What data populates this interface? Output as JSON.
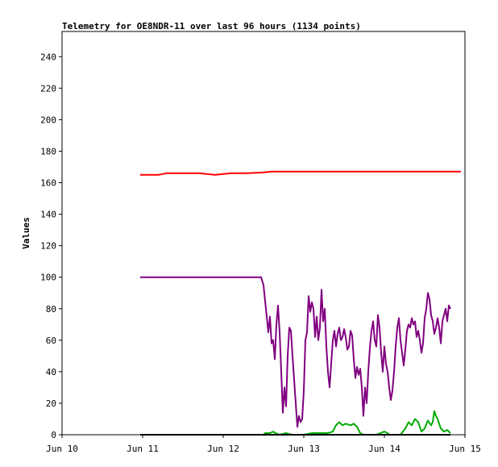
{
  "chart_data": {
    "type": "line",
    "title": "Telemetry for OE8NDR-11 over last 96 hours (1134 points)",
    "xlabel": "",
    "ylabel": "Values",
    "x_ticks": [
      "Jun 10",
      "Jun 11",
      "Jun 12",
      "Jun 13",
      "Jun 14",
      "Jun 15"
    ],
    "xlim": [
      0,
      5
    ],
    "x_unit": "days after Jun 10 00:00",
    "y_ticks": [
      0,
      20,
      40,
      60,
      80,
      100,
      120,
      140,
      160,
      180,
      200,
      220,
      240
    ],
    "ylim": [
      0,
      256
    ],
    "grid": false,
    "legend": "none",
    "series": [
      {
        "color": "#ff0000",
        "points": [
          [
            0.97,
            165
          ],
          [
            1.2,
            165
          ],
          [
            1.3,
            166
          ],
          [
            1.5,
            166
          ],
          [
            1.7,
            166
          ],
          [
            1.9,
            165
          ],
          [
            2.1,
            166
          ],
          [
            2.3,
            166
          ],
          [
            2.5,
            166.5
          ],
          [
            2.6,
            167
          ],
          [
            2.8,
            167
          ],
          [
            3.0,
            167
          ],
          [
            3.2,
            167
          ],
          [
            3.5,
            167
          ],
          [
            3.8,
            167
          ],
          [
            4.1,
            167
          ],
          [
            4.4,
            167
          ],
          [
            4.7,
            167
          ],
          [
            4.95,
            167
          ]
        ]
      },
      {
        "color": "#800080",
        "points": [
          [
            0.97,
            100
          ],
          [
            1.5,
            100
          ],
          [
            2.0,
            100
          ],
          [
            2.47,
            100
          ],
          [
            2.5,
            95
          ],
          [
            2.53,
            80
          ],
          [
            2.56,
            65
          ],
          [
            2.58,
            75
          ],
          [
            2.6,
            58
          ],
          [
            2.62,
            60
          ],
          [
            2.64,
            48
          ],
          [
            2.66,
            70
          ],
          [
            2.68,
            82
          ],
          [
            2.7,
            65
          ],
          [
            2.72,
            40
          ],
          [
            2.74,
            14
          ],
          [
            2.76,
            30
          ],
          [
            2.78,
            18
          ],
          [
            2.8,
            50
          ],
          [
            2.82,
            68
          ],
          [
            2.84,
            66
          ],
          [
            2.86,
            50
          ],
          [
            2.88,
            35
          ],
          [
            2.9,
            20
          ],
          [
            2.92,
            5
          ],
          [
            2.94,
            12
          ],
          [
            2.96,
            8
          ],
          [
            2.98,
            10
          ],
          [
            3.0,
            28
          ],
          [
            3.02,
            60
          ],
          [
            3.04,
            65
          ],
          [
            3.06,
            88
          ],
          [
            3.08,
            78
          ],
          [
            3.1,
            84
          ],
          [
            3.12,
            80
          ],
          [
            3.14,
            62
          ],
          [
            3.16,
            75
          ],
          [
            3.18,
            60
          ],
          [
            3.2,
            68
          ],
          [
            3.22,
            92
          ],
          [
            3.24,
            72
          ],
          [
            3.26,
            80
          ],
          [
            3.28,
            56
          ],
          [
            3.3,
            40
          ],
          [
            3.32,
            30
          ],
          [
            3.34,
            45
          ],
          [
            3.36,
            60
          ],
          [
            3.38,
            66
          ],
          [
            3.4,
            56
          ],
          [
            3.42,
            64
          ],
          [
            3.44,
            68
          ],
          [
            3.46,
            60
          ],
          [
            3.48,
            62
          ],
          [
            3.5,
            67
          ],
          [
            3.52,
            62
          ],
          [
            3.54,
            54
          ],
          [
            3.56,
            56
          ],
          [
            3.58,
            66
          ],
          [
            3.6,
            63
          ],
          [
            3.62,
            48
          ],
          [
            3.64,
            36
          ],
          [
            3.66,
            43
          ],
          [
            3.68,
            38
          ],
          [
            3.7,
            42
          ],
          [
            3.72,
            30
          ],
          [
            3.74,
            12
          ],
          [
            3.76,
            30
          ],
          [
            3.78,
            20
          ],
          [
            3.8,
            40
          ],
          [
            3.82,
            55
          ],
          [
            3.84,
            66
          ],
          [
            3.86,
            72
          ],
          [
            3.88,
            60
          ],
          [
            3.9,
            56
          ],
          [
            3.92,
            76
          ],
          [
            3.94,
            68
          ],
          [
            3.96,
            52
          ],
          [
            3.98,
            40
          ],
          [
            4.0,
            56
          ],
          [
            4.02,
            45
          ],
          [
            4.04,
            40
          ],
          [
            4.06,
            30
          ],
          [
            4.08,
            22
          ],
          [
            4.1,
            28
          ],
          [
            4.12,
            40
          ],
          [
            4.14,
            56
          ],
          [
            4.16,
            68
          ],
          [
            4.18,
            74
          ],
          [
            4.2,
            60
          ],
          [
            4.22,
            52
          ],
          [
            4.24,
            44
          ],
          [
            4.26,
            54
          ],
          [
            4.28,
            66
          ],
          [
            4.3,
            70
          ],
          [
            4.32,
            68
          ],
          [
            4.34,
            74
          ],
          [
            4.36,
            70
          ],
          [
            4.38,
            72
          ],
          [
            4.4,
            62
          ],
          [
            4.42,
            66
          ],
          [
            4.44,
            60
          ],
          [
            4.46,
            52
          ],
          [
            4.48,
            58
          ],
          [
            4.5,
            74
          ],
          [
            4.52,
            80
          ],
          [
            4.54,
            90
          ],
          [
            4.56,
            86
          ],
          [
            4.58,
            76
          ],
          [
            4.6,
            72
          ],
          [
            4.62,
            64
          ],
          [
            4.64,
            68
          ],
          [
            4.66,
            74
          ],
          [
            4.68,
            68
          ],
          [
            4.7,
            58
          ],
          [
            4.72,
            72
          ],
          [
            4.74,
            76
          ],
          [
            4.76,
            80
          ],
          [
            4.78,
            72
          ],
          [
            4.8,
            82
          ],
          [
            4.82,
            80
          ]
        ]
      },
      {
        "color": "#00aa00",
        "points": [
          [
            2.5,
            0
          ],
          [
            2.52,
            1
          ],
          [
            2.58,
            1
          ],
          [
            2.62,
            2
          ],
          [
            2.65,
            1
          ],
          [
            2.7,
            0
          ],
          [
            2.78,
            1
          ],
          [
            2.85,
            0
          ],
          [
            3.0,
            0
          ],
          [
            3.1,
            1
          ],
          [
            3.3,
            1
          ],
          [
            3.36,
            2
          ],
          [
            3.4,
            6
          ],
          [
            3.44,
            8
          ],
          [
            3.48,
            6
          ],
          [
            3.52,
            7
          ],
          [
            3.58,
            6
          ],
          [
            3.62,
            7
          ],
          [
            3.66,
            5
          ],
          [
            3.7,
            1
          ],
          [
            3.74,
            0
          ],
          [
            3.8,
            0
          ],
          [
            3.9,
            0
          ],
          [
            4.0,
            2
          ],
          [
            4.04,
            1
          ],
          [
            4.06,
            0
          ],
          [
            4.12,
            0
          ],
          [
            4.2,
            0
          ],
          [
            4.26,
            4
          ],
          [
            4.3,
            8
          ],
          [
            4.34,
            6
          ],
          [
            4.38,
            10
          ],
          [
            4.42,
            8
          ],
          [
            4.46,
            2
          ],
          [
            4.5,
            4
          ],
          [
            4.54,
            9
          ],
          [
            4.58,
            6
          ],
          [
            4.6,
            8
          ],
          [
            4.62,
            15
          ],
          [
            4.64,
            12
          ],
          [
            4.66,
            10
          ],
          [
            4.7,
            4
          ],
          [
            4.74,
            2
          ],
          [
            4.78,
            3
          ],
          [
            4.82,
            1
          ]
        ]
      },
      {
        "color": "#000000",
        "points": [
          [
            0.97,
            0
          ],
          [
            2.0,
            0
          ],
          [
            3.0,
            0
          ],
          [
            4.0,
            0
          ],
          [
            4.82,
            0
          ]
        ]
      }
    ]
  }
}
